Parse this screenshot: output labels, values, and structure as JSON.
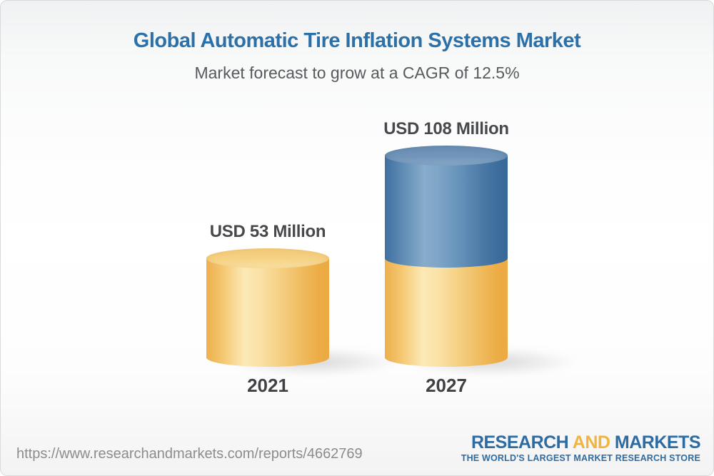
{
  "header": {
    "title": "Global Automatic Tire Inflation Systems Market",
    "subtitle": "Market forecast to grow at a CAGR of 12.5%"
  },
  "chart_data": {
    "type": "bar",
    "subtype": "3d-cylinder",
    "categories": [
      "2021",
      "2027"
    ],
    "values": [
      53,
      108
    ],
    "value_labels": [
      "USD 53 Million",
      "USD 108 Million"
    ],
    "unit": "USD Million",
    "title": "Global Automatic Tire Inflation Systems Market",
    "subtitle": "Market forecast to grow at a CAGR of 12.5%",
    "ylim": [
      0,
      120
    ],
    "grid": false,
    "legend": false,
    "series_colors": {
      "base_segment": "#f5c873",
      "growth_segment": "#5e8bb4"
    },
    "notes": "2027 cylinder is stacked: yellow base equal to 2021 value, blue segment for growth above it"
  },
  "colors": {
    "title_blue": "#2c70aa",
    "subtitle_gray": "#58595c",
    "label_gray": "#47484b",
    "logo_blue": "#2d6ba3",
    "logo_yellow": "#f1b53e"
  },
  "footer": {
    "url": "https://www.researchandmarkets.com/reports/4662769",
    "logo": {
      "word1": "RESEARCH",
      "word2": "AND",
      "word3": "MARKETS",
      "tagline": "THE WORLD'S LARGEST MARKET RESEARCH STORE"
    }
  }
}
